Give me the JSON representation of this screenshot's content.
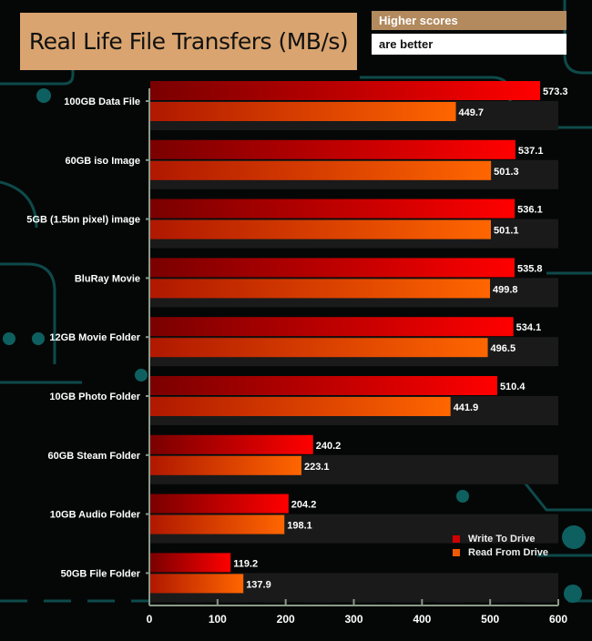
{
  "header": {
    "title": "Real Life File Transfers (MB/s)",
    "note_line1": "Higher scores",
    "note_line2": "are better"
  },
  "chart_data": {
    "type": "bar",
    "orientation": "horizontal",
    "title": "Real Life File Transfers (MB/s)",
    "categories": [
      "100GB Data File",
      "60GB iso Image",
      "5GB (1.5bn pixel) image",
      "BluRay Movie",
      "12GB Movie Folder",
      "10GB Photo Folder",
      "60GB Steam Folder",
      "10GB Audio Folder",
      "50GB File Folder"
    ],
    "series": [
      {
        "name": "Write To  Drive",
        "color": "#e00000",
        "values": [
          573.3,
          537.1,
          536.1,
          535.8,
          534.1,
          510.4,
          240.2,
          204.2,
          119.2
        ]
      },
      {
        "name": "Read From  Drive",
        "color": "#f05a00",
        "values": [
          449.7,
          501.3,
          501.1,
          499.8,
          496.5,
          441.9,
          223.1,
          198.1,
          137.9
        ]
      }
    ],
    "xlim": [
      0,
      600
    ],
    "xticks": [
      "0",
      "100",
      "200",
      "300",
      "400",
      "500",
      "600"
    ],
    "legend": "bottom-right",
    "grid": false
  }
}
